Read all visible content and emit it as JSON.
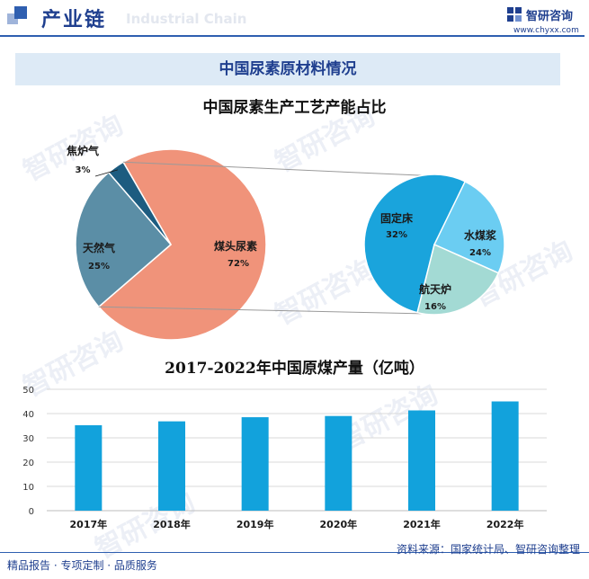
{
  "header": {
    "title": "产业链",
    "ghost_text": "Industrial Chain",
    "brand_name": "智研咨询",
    "brand_url": "www.chyxx.com"
  },
  "section_title": "中国尿素原材料情况",
  "watermark": "智研咨询",
  "chart_data": [
    {
      "type": "pie",
      "title": "中国尿素生产工艺产能占比",
      "slices": [
        {
          "name": "煤头尿素",
          "value": 72,
          "label": "72%",
          "color": "#f0937a"
        },
        {
          "name": "天然气",
          "value": 25,
          "label": "25%",
          "color": "#5b8ea6"
        },
        {
          "name": "焦炉气",
          "value": 3,
          "label": "3%",
          "color": "#1d5c80"
        }
      ],
      "breakdown_of": "煤头尿素",
      "breakdown": [
        {
          "name": "固定床",
          "value": 32,
          "label": "32%",
          "color": "#1aa4dc"
        },
        {
          "name": "水煤浆",
          "value": 24,
          "label": "24%",
          "color": "#6bcdf2"
        },
        {
          "name": "航天炉",
          "value": 16,
          "label": "16%",
          "color": "#a3dad4"
        }
      ]
    },
    {
      "type": "bar",
      "title": "2017-2022年中国原煤产量（亿吨）",
      "categories": [
        "2017年",
        "2018年",
        "2019年",
        "2020年",
        "2021年",
        "2022年"
      ],
      "values": [
        35.2,
        36.8,
        38.5,
        39.0,
        41.3,
        45.0
      ],
      "ylim": [
        0,
        50
      ],
      "yticks": [
        0,
        10,
        20,
        30,
        40,
        50
      ],
      "color": "#12a2dc",
      "grid": true
    }
  ],
  "footer": {
    "left": "精品报告 · 专项定制 · 品质服务",
    "right": "资料来源：国家统计局、智研咨询整理"
  }
}
